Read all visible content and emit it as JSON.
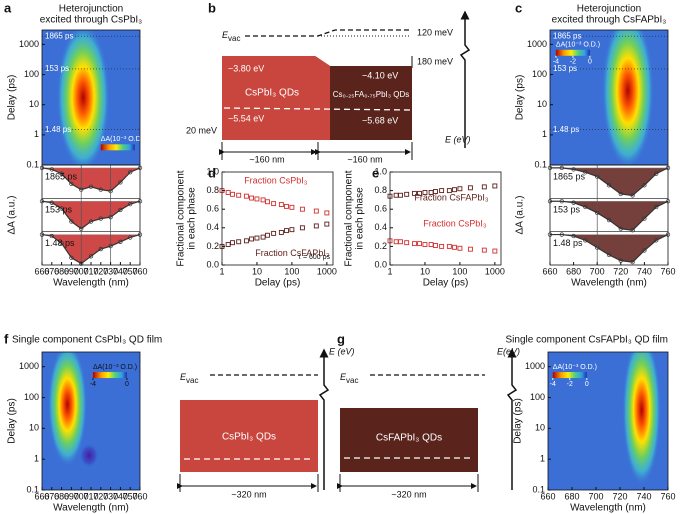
{
  "panel_labels": [
    "a",
    "b",
    "c",
    "d",
    "e",
    "f",
    "g"
  ],
  "chart_data": [
    {
      "type": "heatmap",
      "title": "Heterojunction",
      "subtitle": "excited through CsPbI₃",
      "y_label": "Delay (ps)",
      "xlim": [
        660,
        760
      ],
      "ylim": [
        0.1,
        3000
      ],
      "log_y": true,
      "yticks": [
        0.1,
        1,
        10,
        100,
        1000
      ],
      "colorbar": {
        "label": "ΔA(10⁻³ O.D.)"
      },
      "delay_markers": [
        {
          "value": 1865,
          "label": "1865 ps"
        },
        {
          "value": 153,
          "label": "153 ps"
        },
        {
          "value": 1.48,
          "label": "1.48 ps"
        }
      ]
    },
    {
      "type": "line",
      "x_label": "Wavelength (nm)",
      "y_label": "ΔA (a.u.)",
      "xlim": [
        660,
        760
      ],
      "xticks": [
        660,
        670,
        680,
        690,
        700,
        710,
        720,
        730,
        740,
        750,
        760
      ],
      "ylim": [
        -1.05,
        0.1
      ],
      "area_color": "#c62828",
      "reference_lines": [
        700,
        730
      ],
      "x": [
        660,
        670,
        680,
        690,
        700,
        710,
        720,
        730,
        740,
        750,
        760
      ],
      "series": [
        {
          "name": "1865 ps",
          "color": "#333333",
          "values": [
            0,
            -0.05,
            -0.2,
            -0.55,
            -0.75,
            -0.65,
            -0.75,
            -0.8,
            -0.5,
            -0.15,
            0
          ]
        },
        {
          "name": "153 ps",
          "color": "#333333",
          "values": [
            0,
            -0.05,
            -0.25,
            -0.7,
            -0.95,
            -0.7,
            -0.6,
            -0.55,
            -0.3,
            -0.1,
            0
          ]
        },
        {
          "name": "1.48 ps",
          "color": "#333333",
          "values": [
            0,
            -0.05,
            -0.3,
            -0.8,
            -1,
            -0.75,
            -0.5,
            -0.4,
            -0.25,
            -0.1,
            0
          ]
        }
      ]
    },
    {
      "type": "heatmap",
      "title": "Heterojunction",
      "subtitle": "excited through CsFAPbI₃",
      "y_label": "Delay (ps)",
      "xlim": [
        660,
        760
      ],
      "ylim": [
        0.1,
        3000
      ],
      "log_y": true,
      "yticks": [
        0.1,
        1,
        10,
        100,
        1000
      ],
      "colorbar": {
        "label": "ΔA(10⁻³ O.D.)",
        "ticks": [
          -4,
          -2,
          0
        ]
      },
      "delay_markers": [
        {
          "value": 1865,
          "label": "1865 ps"
        },
        {
          "value": 153,
          "label": "153 ps"
        },
        {
          "value": 1.48,
          "label": "1.48 ps"
        }
      ]
    },
    {
      "type": "line",
      "x_label": "Wavelength (nm)",
      "y_label": "ΔA (a.u.)",
      "xlim": [
        660,
        760
      ],
      "xticks": [
        660,
        680,
        700,
        720,
        740,
        760
      ],
      "ylim": [
        -1.05,
        0.1
      ],
      "area_color": "#5d1f1a",
      "reference_lines": [
        700
      ],
      "x": [
        660,
        670,
        680,
        690,
        700,
        710,
        720,
        730,
        740,
        750,
        760
      ],
      "series": [
        {
          "name": "1865 ps",
          "color": "#333333",
          "values": [
            0,
            0,
            -0.05,
            -0.15,
            -0.3,
            -0.6,
            -0.9,
            -0.95,
            -0.6,
            -0.2,
            0
          ]
        },
        {
          "name": "153 ps",
          "color": "#333333",
          "values": [
            0,
            0,
            -0.05,
            -0.2,
            -0.4,
            -0.65,
            -0.95,
            -1,
            -0.6,
            -0.2,
            0
          ]
        },
        {
          "name": "1.48 ps",
          "color": "#333333",
          "values": [
            0,
            0,
            -0.05,
            -0.2,
            -0.45,
            -0.7,
            -0.9,
            -0.95,
            -0.55,
            -0.2,
            0
          ]
        }
      ]
    },
    {
      "type": "scatter",
      "x_label": "Delay (ps)",
      "y_label": [
        "Fractional component",
        "in each phase"
      ],
      "xlim": [
        1,
        1500
      ],
      "log_x": true,
      "xticks": [
        1,
        10,
        100,
        1000
      ],
      "ylim": [
        0,
        1
      ],
      "yticks": [
        {
          "value": 0,
          "label": "0.0"
        },
        0.2,
        0.4,
        0.6,
        0.8,
        {
          "value": 1,
          "label": "1.0"
        }
      ],
      "annotation": "τ = 600 ps",
      "x": [
        1,
        1.5,
        2,
        3,
        5,
        7,
        10,
        15,
        20,
        30,
        50,
        70,
        100,
        200,
        500,
        1000
      ],
      "series": [
        {
          "name": "Fraction CsPbI₃",
          "color": "#d32f2f",
          "values": [
            0.8,
            0.78,
            0.76,
            0.75,
            0.74,
            0.72,
            0.71,
            0.7,
            0.68,
            0.66,
            0.65,
            0.63,
            0.62,
            0.6,
            0.58,
            0.56
          ]
        },
        {
          "name": "Fraction CsFAPbI₃",
          "color": "#5d1f1a",
          "values": [
            0.2,
            0.22,
            0.24,
            0.25,
            0.26,
            0.28,
            0.29,
            0.3,
            0.32,
            0.34,
            0.35,
            0.37,
            0.38,
            0.4,
            0.42,
            0.44
          ]
        }
      ]
    },
    {
      "type": "scatter",
      "x_label": "Delay (ps)",
      "y_label": [
        "Fractional component",
        "in each phase"
      ],
      "xlim": [
        1,
        1500
      ],
      "log_x": true,
      "xticks": [
        1,
        10,
        100,
        1000
      ],
      "ylim": [
        0,
        1
      ],
      "yticks": [
        {
          "value": 0,
          "label": "0.0"
        },
        0.2,
        0.4,
        0.6,
        0.8,
        {
          "value": 1,
          "label": "1.0"
        }
      ],
      "x": [
        1,
        1.5,
        2,
        3,
        5,
        7,
        10,
        15,
        20,
        30,
        50,
        70,
        100,
        200,
        500,
        1000
      ],
      "series": [
        {
          "name": "Fraction CsFAPbI₃",
          "color": "#5d1f1a",
          "values": [
            0.74,
            0.75,
            0.75,
            0.76,
            0.77,
            0.77,
            0.78,
            0.78,
            0.79,
            0.8,
            0.8,
            0.81,
            0.82,
            0.83,
            0.84,
            0.85
          ]
        },
        {
          "name": "Fraction CsPbI₃",
          "color": "#d32f2f",
          "values": [
            0.26,
            0.25,
            0.25,
            0.24,
            0.23,
            0.23,
            0.22,
            0.22,
            0.21,
            0.2,
            0.2,
            0.19,
            0.18,
            0.17,
            0.16,
            0.15
          ]
        }
      ]
    },
    {
      "type": "heatmap",
      "title": "Single component CsPbI₃ QD film",
      "y_label": "Delay (ps)",
      "x_label": "Wavelength (nm)",
      "xlim": [
        660,
        760
      ],
      "xticks": [
        660,
        670,
        680,
        690,
        700,
        710,
        720,
        730,
        740,
        750,
        760
      ],
      "ylim": [
        0.1,
        3000
      ],
      "log_y": true,
      "yticks": [
        0.1,
        1,
        10,
        100,
        1000
      ],
      "colorbar": {
        "label": "ΔA(10⁻³ O.D.)",
        "ticks": [
          -4,
          0
        ]
      }
    },
    {
      "type": "heatmap",
      "title": "Single component CsFAPbI₃ QD film",
      "y_label": "Delay (ps)",
      "x_label": "Wavelength (nm)",
      "xlim": [
        660,
        760
      ],
      "xticks": [
        660,
        680,
        700,
        720,
        740,
        760
      ],
      "ylim": [
        0.1,
        3000
      ],
      "log_y": true,
      "yticks": [
        0.1,
        1,
        10,
        100,
        1000
      ],
      "colorbar": {
        "label": "ΔA(10⁻³ O.D.)",
        "ticks": [
          -4,
          -2,
          0
        ]
      }
    }
  ],
  "energy_diagrams": [
    {
      "evac": {
        "main": "E",
        "sub": "vac"
      },
      "offsets": [
        "120 meV",
        "180 meV",
        "20 meV"
      ],
      "levels": [
        "−3.80 eV",
        "−4.10 eV",
        "−5.54 eV",
        "−5.68 eV"
      ],
      "materials": [
        "CsPbI₃ QDs",
        "Cs₀.₂₅FA₀.₇₅PbI₃ QDs"
      ],
      "widths": [
        "~160 nm",
        "~160 nm"
      ],
      "axis": "E (eV)"
    },
    {
      "evac": {
        "main": "E",
        "sub": "vac"
      },
      "material": "CsPbI₃ QDs",
      "width": "~320 nm",
      "axis": "E (eV)"
    },
    {
      "evac": {
        "main": "E",
        "sub": "vac"
      },
      "material": "CsFAPbI₃ QDs",
      "width": "~320 nm",
      "axis": "E(eV)"
    }
  ]
}
